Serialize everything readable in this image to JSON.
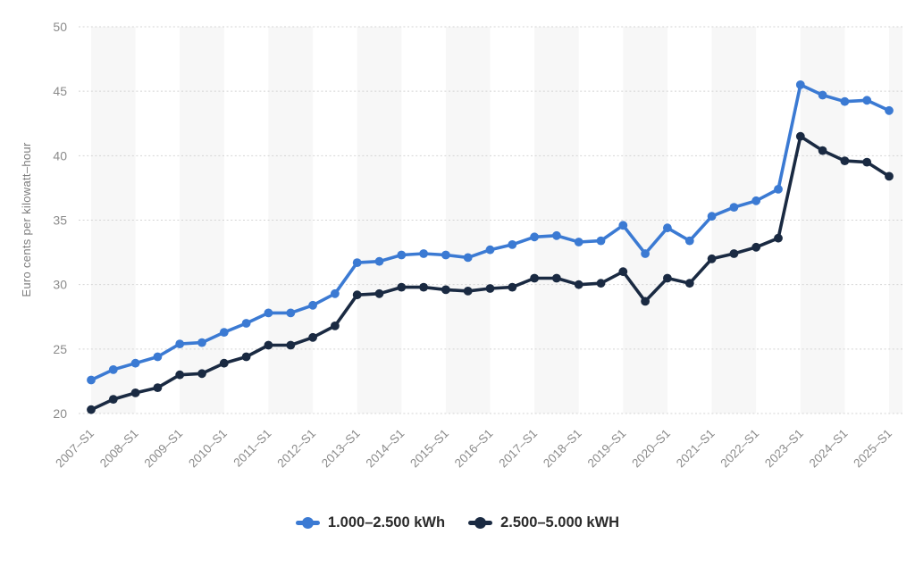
{
  "chart_data": {
    "type": "line",
    "title": "",
    "xlabel": "",
    "ylabel": "Euro cents per kilowatt–hour",
    "ylim": [
      20,
      50
    ],
    "yticks": [
      20,
      25,
      30,
      35,
      40,
      45,
      50
    ],
    "grid": "horizontal dotted lines at each y tick",
    "legend_position": "bottom-center",
    "x_tick_every": 2,
    "shaded_year_band_indices": [
      0,
      4,
      8,
      12,
      16,
      20,
      24,
      28,
      32,
      36
    ],
    "x": [
      "2007–S1",
      "2007–S2",
      "2008–S1",
      "2008–S2",
      "2009–S1",
      "2009–S2",
      "2010–S1",
      "2010–S2",
      "2011–S1",
      "2011–S2",
      "2012–S1",
      "2012–S2",
      "2013–S1",
      "2013–S2",
      "2014–S1",
      "2014–S2",
      "2015–S1",
      "2015–S2",
      "2016–S1",
      "2016–S2",
      "2017–S1",
      "2017–S2",
      "2018–S1",
      "2018–S2",
      "2019–S1",
      "2019–S2",
      "2020–S1",
      "2020–S2",
      "2021–S1",
      "2021–S2",
      "2022–S1",
      "2022–S2",
      "2023–S1",
      "2023–S2",
      "2024–S1",
      "2024–S2",
      "2025–S1"
    ],
    "series": [
      {
        "name": "1.000–2.500 kWh",
        "color": "#3B7AD3",
        "values": [
          22.6,
          23.4,
          23.9,
          24.4,
          25.4,
          25.5,
          26.3,
          27.0,
          27.8,
          27.8,
          28.4,
          29.3,
          31.7,
          31.8,
          32.3,
          32.4,
          32.3,
          32.1,
          32.7,
          33.1,
          33.7,
          33.8,
          33.3,
          33.4,
          34.6,
          32.4,
          34.4,
          33.4,
          35.3,
          36.0,
          36.5,
          37.4,
          45.5,
          44.7,
          44.2,
          44.3,
          43.5
        ]
      },
      {
        "name": "2.500–5.000 kWH",
        "color": "#1A2A42",
        "values": [
          20.3,
          21.1,
          21.6,
          22.0,
          23.0,
          23.1,
          23.9,
          24.4,
          25.3,
          25.3,
          25.9,
          26.8,
          29.2,
          29.3,
          29.8,
          29.8,
          29.6,
          29.5,
          29.7,
          29.8,
          30.5,
          30.5,
          30.0,
          30.1,
          31.0,
          28.7,
          30.5,
          30.1,
          32.0,
          32.4,
          32.9,
          33.6,
          41.5,
          40.4,
          39.6,
          39.5,
          38.4
        ]
      }
    ],
    "colors": {
      "band": "#f7f7f7",
      "grid": "#d4d4d4",
      "tick_text": "#8b8b8b",
      "axis_label_text": "#7d7d7d",
      "legend_text": "#2b2b2b"
    }
  }
}
